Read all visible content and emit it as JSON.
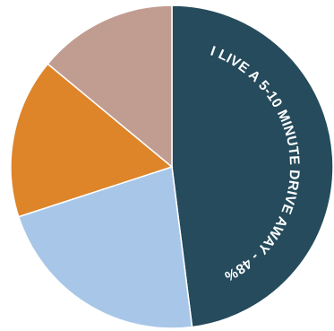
{
  "chart_data": {
    "type": "pie",
    "slices": [
      {
        "value": 48,
        "color": "#254b5c",
        "label": "I LIVE A 5-10 MINUTE DRIVE AWAY - 48%"
      },
      {
        "value": 22,
        "color": "#a8c7e8",
        "label": ""
      },
      {
        "value": 16,
        "color": "#de8429",
        "label": ""
      },
      {
        "value": 14,
        "color": "#c19c91",
        "label": ""
      }
    ]
  }
}
